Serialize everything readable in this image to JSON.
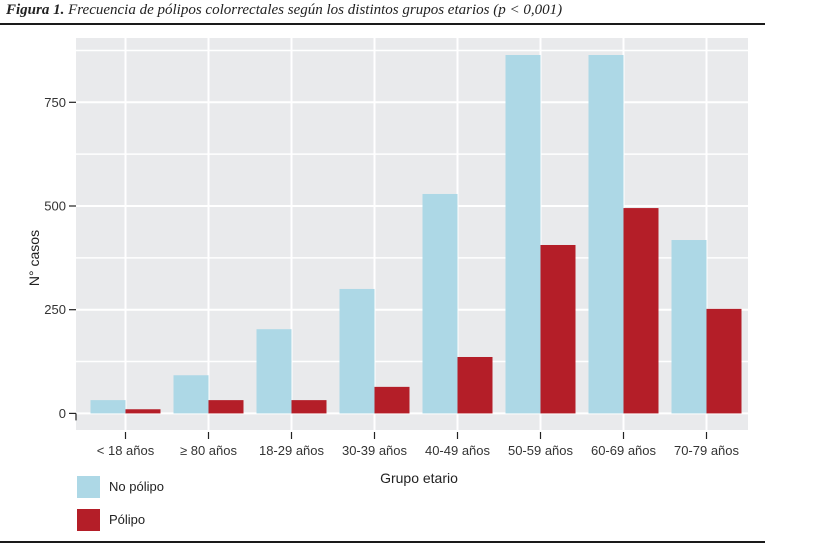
{
  "caption": {
    "figure_label": "Figura 1.",
    "text": " Frecuencia de pólipos colorrectales según los distintos grupos etarios (p < 0,001)"
  },
  "colors": {
    "panel_bg": "#e9eaec",
    "grid": "#ffffff",
    "no_polipo": "#add8e6",
    "polipo": "#b41e28"
  },
  "chart_data": {
    "type": "bar",
    "title": "Figura 1. Frecuencia de pólipos colorrectales según los distintos grupos etarios (p < 0,001)",
    "xlabel": "Grupo etario",
    "ylabel": "N° casos",
    "categories": [
      "< 18 años",
      "≥ 80 años",
      "18-29 años",
      "30-39 años",
      "40-49 años",
      "50-59 años",
      "60-69 años",
      "70-79 años"
    ],
    "series": [
      {
        "name": "No pólipo",
        "color": "#add8e6",
        "values": [
          32,
          92,
          203,
          300,
          529,
          864,
          864,
          418
        ]
      },
      {
        "name": "Pólipo",
        "color": "#b41e28",
        "values": [
          10,
          32,
          32,
          64,
          136,
          406,
          495,
          252
        ]
      }
    ],
    "ylim": [
      -40,
      905
    ],
    "yticks": [
      0,
      250,
      500,
      750
    ],
    "yticks_labels": [
      "0",
      "250",
      "500",
      "750"
    ],
    "minor_gridlines": [
      125,
      375,
      625,
      875
    ],
    "grid": true,
    "legend_position": "bottom-left"
  }
}
